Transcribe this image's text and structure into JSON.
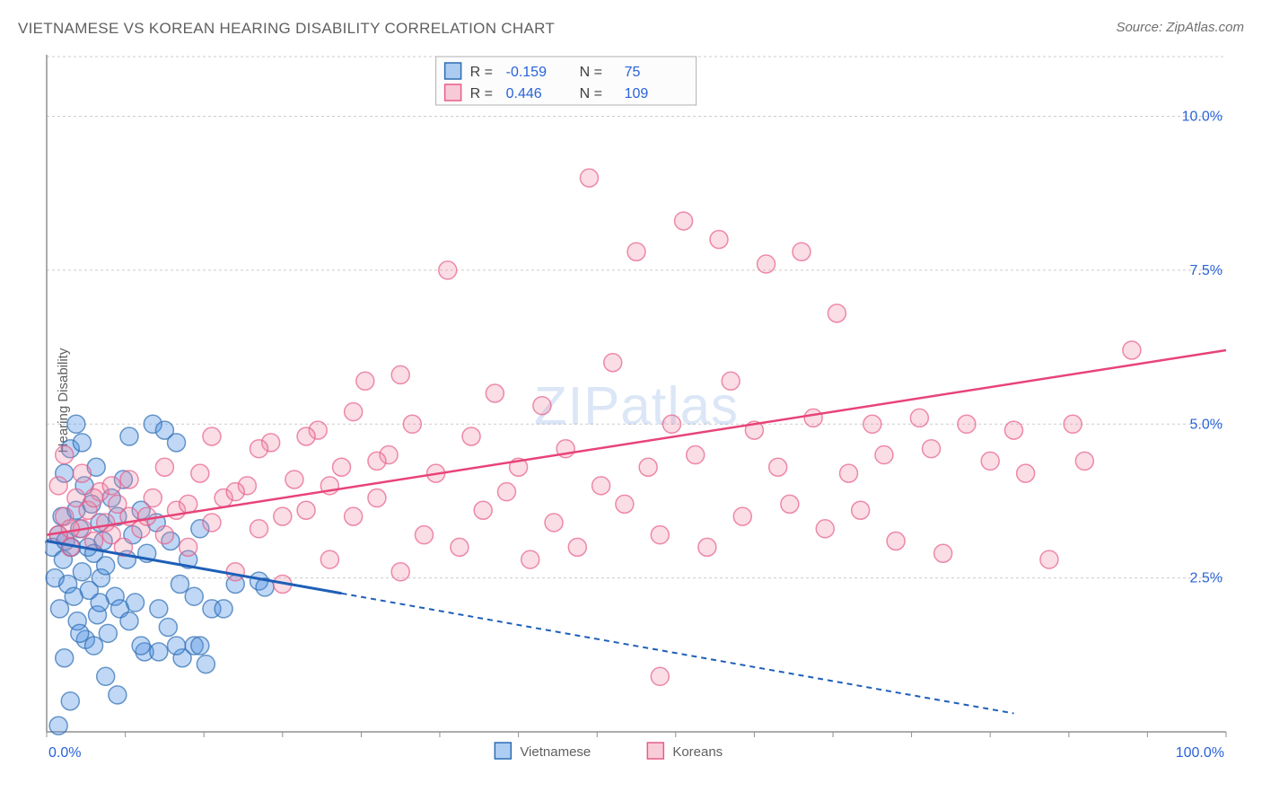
{
  "title": "VIETNAMESE VS KOREAN HEARING DISABILITY CORRELATION CHART",
  "source": "Source: ZipAtlas.com",
  "ylabel": "Hearing Disability",
  "watermark": "ZIPatlas",
  "chart": {
    "type": "scatter",
    "plot_bg": "#ffffff",
    "grid_color": "#cccccc",
    "axis_color": "#909090",
    "tick_label_color": "#2962d9",
    "x_range": [
      0,
      100
    ],
    "y_range": [
      0,
      11
    ],
    "x_ticks": [
      0,
      100
    ],
    "x_tick_labels": [
      "0.0%",
      "100.0%"
    ],
    "x_minor_ticks": [
      0,
      6.67,
      13.33,
      20,
      26.67,
      33.33,
      40,
      46.67,
      53.33,
      60,
      66.67,
      73.33,
      80,
      86.67,
      93.33,
      100
    ],
    "y_ticks": [
      2.5,
      5.0,
      7.5,
      10.0
    ],
    "y_tick_labels": [
      "2.5%",
      "5.0%",
      "7.5%",
      "10.0%"
    ],
    "point_radius": 10,
    "series": [
      {
        "name": "Vietnamese",
        "color_fill": "#4a90e2",
        "color_stroke": "#2d6db3",
        "R": -0.159,
        "N": 75,
        "trend": {
          "x1": 0,
          "y1": 3.1,
          "x2_solid": 25,
          "y2_solid": 2.25,
          "x2_dash": 82,
          "y2_dash": 0.3
        },
        "points": [
          [
            0.5,
            3.0
          ],
          [
            0.7,
            2.5
          ],
          [
            1.0,
            3.2
          ],
          [
            1.1,
            2.0
          ],
          [
            1.3,
            3.5
          ],
          [
            1.4,
            2.8
          ],
          [
            1.5,
            4.2
          ],
          [
            1.6,
            3.1
          ],
          [
            1.8,
            2.4
          ],
          [
            2.0,
            4.6
          ],
          [
            2.1,
            3.0
          ],
          [
            2.3,
            2.2
          ],
          [
            2.5,
            3.6
          ],
          [
            2.6,
            1.8
          ],
          [
            2.8,
            3.3
          ],
          [
            3.0,
            2.6
          ],
          [
            3.2,
            4.0
          ],
          [
            3.3,
            1.5
          ],
          [
            3.5,
            3.0
          ],
          [
            3.6,
            2.3
          ],
          [
            3.8,
            3.7
          ],
          [
            4.0,
            2.9
          ],
          [
            4.2,
            4.3
          ],
          [
            4.3,
            1.9
          ],
          [
            4.5,
            3.4
          ],
          [
            4.6,
            2.5
          ],
          [
            4.8,
            3.1
          ],
          [
            5.0,
            2.7
          ],
          [
            5.2,
            1.6
          ],
          [
            5.5,
            3.8
          ],
          [
            5.8,
            2.2
          ],
          [
            6.0,
            3.5
          ],
          [
            6.2,
            2.0
          ],
          [
            6.5,
            4.1
          ],
          [
            6.8,
            2.8
          ],
          [
            7.0,
            4.8
          ],
          [
            7.3,
            3.2
          ],
          [
            7.5,
            2.1
          ],
          [
            8.0,
            3.6
          ],
          [
            8.3,
            1.3
          ],
          [
            8.5,
            2.9
          ],
          [
            9.0,
            5.0
          ],
          [
            9.3,
            3.4
          ],
          [
            9.5,
            2.0
          ],
          [
            10.0,
            4.9
          ],
          [
            10.3,
            1.7
          ],
          [
            10.5,
            3.1
          ],
          [
            11.0,
            4.7
          ],
          [
            11.3,
            2.4
          ],
          [
            11.5,
            1.2
          ],
          [
            12.0,
            2.8
          ],
          [
            12.5,
            1.4
          ],
          [
            13.0,
            3.3
          ],
          [
            13.5,
            1.1
          ],
          [
            14.0,
            2.0
          ],
          [
            1.0,
            0.1
          ],
          [
            2.0,
            0.5
          ],
          [
            5.0,
            0.9
          ],
          [
            6.0,
            0.6
          ],
          [
            3.0,
            4.7
          ],
          [
            2.5,
            5.0
          ],
          [
            4.0,
            1.4
          ],
          [
            1.5,
            1.2
          ],
          [
            2.8,
            1.6
          ],
          [
            4.5,
            2.1
          ],
          [
            7.0,
            1.8
          ],
          [
            8.0,
            1.4
          ],
          [
            9.5,
            1.3
          ],
          [
            11.0,
            1.4
          ],
          [
            12.5,
            2.2
          ],
          [
            15.0,
            2.0
          ],
          [
            16.0,
            2.4
          ],
          [
            18.0,
            2.45
          ],
          [
            18.5,
            2.35
          ],
          [
            13.0,
            1.4
          ]
        ]
      },
      {
        "name": "Koreans",
        "color_fill": "#f08da8",
        "color_stroke": "#e75d89",
        "R": 0.446,
        "N": 109,
        "trend": {
          "x1": 0,
          "y1": 3.2,
          "x2": 100,
          "y2": 6.2
        },
        "points": [
          [
            1.0,
            3.2
          ],
          [
            1.5,
            3.5
          ],
          [
            2.0,
            3.0
          ],
          [
            2.5,
            3.8
          ],
          [
            3.0,
            3.3
          ],
          [
            3.5,
            3.6
          ],
          [
            4.0,
            3.1
          ],
          [
            4.5,
            3.9
          ],
          [
            5.0,
            3.4
          ],
          [
            5.5,
            3.2
          ],
          [
            6.0,
            3.7
          ],
          [
            6.5,
            3.0
          ],
          [
            7.0,
            3.5
          ],
          [
            8.0,
            3.3
          ],
          [
            9.0,
            3.8
          ],
          [
            10.0,
            3.2
          ],
          [
            11.0,
            3.6
          ],
          [
            12.0,
            3.0
          ],
          [
            13.0,
            4.2
          ],
          [
            14.0,
            3.4
          ],
          [
            15.0,
            3.8
          ],
          [
            16.0,
            2.6
          ],
          [
            17.0,
            4.0
          ],
          [
            18.0,
            3.3
          ],
          [
            19.0,
            4.7
          ],
          [
            20.0,
            2.4
          ],
          [
            21.0,
            4.1
          ],
          [
            22.0,
            3.6
          ],
          [
            23.0,
            4.9
          ],
          [
            24.0,
            2.8
          ],
          [
            25.0,
            4.3
          ],
          [
            26.0,
            3.5
          ],
          [
            27.0,
            5.7
          ],
          [
            28.0,
            3.8
          ],
          [
            29.0,
            4.5
          ],
          [
            30.0,
            2.6
          ],
          [
            31.0,
            5.0
          ],
          [
            32.0,
            3.2
          ],
          [
            33.0,
            4.2
          ],
          [
            34.0,
            7.5
          ],
          [
            35.0,
            3.0
          ],
          [
            36.0,
            4.8
          ],
          [
            37.0,
            3.6
          ],
          [
            38.0,
            5.5
          ],
          [
            39.0,
            3.9
          ],
          [
            40.0,
            4.3
          ],
          [
            41.0,
            2.8
          ],
          [
            42.0,
            5.3
          ],
          [
            43.0,
            3.4
          ],
          [
            44.0,
            4.6
          ],
          [
            45.0,
            3.0
          ],
          [
            46.0,
            9.0
          ],
          [
            47.0,
            4.0
          ],
          [
            48.0,
            6.0
          ],
          [
            49.0,
            3.7
          ],
          [
            50.0,
            7.8
          ],
          [
            51.0,
            4.3
          ],
          [
            52.0,
            3.2
          ],
          [
            53.0,
            5.0
          ],
          [
            54.0,
            8.3
          ],
          [
            55.0,
            4.5
          ],
          [
            56.0,
            3.0
          ],
          [
            57.0,
            8.0
          ],
          [
            58.0,
            5.7
          ],
          [
            59.0,
            3.5
          ],
          [
            60.0,
            4.9
          ],
          [
            61.0,
            7.6
          ],
          [
            62.0,
            4.3
          ],
          [
            63.0,
            3.7
          ],
          [
            64.0,
            7.8
          ],
          [
            65.0,
            5.1
          ],
          [
            66.0,
            3.3
          ],
          [
            67.0,
            6.8
          ],
          [
            68.0,
            4.2
          ],
          [
            69.0,
            3.6
          ],
          [
            70.0,
            5.0
          ],
          [
            71.0,
            4.5
          ],
          [
            72.0,
            3.1
          ],
          [
            74.0,
            5.1
          ],
          [
            75.0,
            4.6
          ],
          [
            76.0,
            2.9
          ],
          [
            78.0,
            5.0
          ],
          [
            80.0,
            4.4
          ],
          [
            82.0,
            4.9
          ],
          [
            83.0,
            4.2
          ],
          [
            85.0,
            2.8
          ],
          [
            87.0,
            5.0
          ],
          [
            88.0,
            4.4
          ],
          [
            92.0,
            6.2
          ],
          [
            52.0,
            0.9
          ],
          [
            1.0,
            4.0
          ],
          [
            1.5,
            4.5
          ],
          [
            2.0,
            3.3
          ],
          [
            3.0,
            4.2
          ],
          [
            4.0,
            3.8
          ],
          [
            5.5,
            4.0
          ],
          [
            7.0,
            4.1
          ],
          [
            8.5,
            3.5
          ],
          [
            10.0,
            4.3
          ],
          [
            12.0,
            3.7
          ],
          [
            14.0,
            4.8
          ],
          [
            16.0,
            3.9
          ],
          [
            18.0,
            4.6
          ],
          [
            20.0,
            3.5
          ],
          [
            22.0,
            4.8
          ],
          [
            24.0,
            4.0
          ],
          [
            26.0,
            5.2
          ],
          [
            28.0,
            4.4
          ],
          [
            30.0,
            5.8
          ]
        ]
      }
    ],
    "bottom_legend": [
      {
        "label": "Vietnamese",
        "swatch": "blue"
      },
      {
        "label": "Koreans",
        "swatch": "pink"
      }
    ]
  }
}
